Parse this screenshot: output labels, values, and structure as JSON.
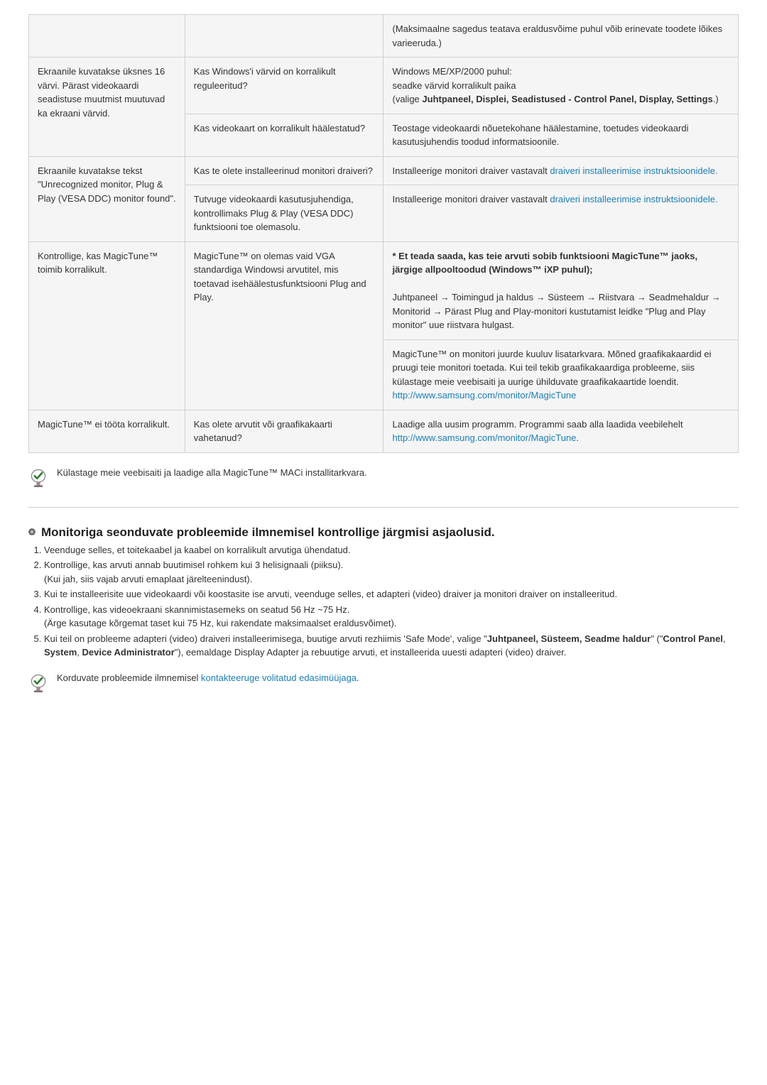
{
  "colors": {
    "cell_bg": "#f5f5f5",
    "border": "#d0d0d0",
    "link": "#1a7fb8",
    "bullet_outer": "#6a6a6a",
    "bullet_inner": "#9a9a9a"
  },
  "table": {
    "rows": [
      {
        "c1": "",
        "c2": "",
        "c3": "(Maksimaalne sagedus teatava eraldusvõime puhul võib erinevate toodete lõikes varieeruda.)"
      },
      {
        "c1": "Ekraanile kuvatakse üksnes 16 värvi. Pärast videokaardi seadistuse muutmist muutuvad ka ekraani värvid.",
        "c1_rowspan": 2,
        "c2": "Kas Windows'i värvid on korralikult reguleeritud?",
        "c3_html": "Windows ME/XP/2000 puhul:<br>seadke värvid korralikult paika<br>(valige <b>Juhtpaneel, Displei, Seadistused - Control Panel, Display, Settings</b>.)"
      },
      {
        "c2": "Kas videokaart on korralikult häälestatud?",
        "c3": "Teostage videokaardi nõuetekohane häälestamine, toetudes videokaardi kasutusjuhendis toodud informatsioonile."
      },
      {
        "c1": "Ekraanile kuvatakse tekst \"Unrecognized monitor, Plug & Play (VESA DDC) monitor found\".",
        "c1_rowspan": 2,
        "c2": "Kas te olete installeerinud monitori draiveri?",
        "c3_html": "Installeerige monitori draiver vastavalt <span class=\"link\">draiveri installeerimise instruktsioonidele.</span>"
      },
      {
        "c2": "Tutvuge videokaardi kasutusjuhendiga, kontrollimaks Plug & Play (VESA DDC) funktsiooni toe olemasolu.",
        "c3_html": "Installeerige monitori draiver vastavalt <span class=\"link\">draiveri installeerimise instruktsioonidele.</span>"
      },
      {
        "c1": "Kontrollige, kas MagicTune™ toimib korralikult.",
        "c1_rowspan": 2,
        "c2": "MagicTune™ on olemas vaid VGA standardiga Windowsi arvutitel, mis toetavad isehäälestusfunktsiooni Plug and Play.",
        "c2_rowspan": 2,
        "c3_html": "<b>* Et teada saada, kas teie arvuti sobib funktsiooni MagicTune™ jaoks, järgige allpooltoodud (Windows™ iXP puhul);</b><br><br>Juhtpaneel → Toimingud ja haldus → Süsteem → Riistvara → Seadmehaldur → Monitorid → Pärast Plug and Play-monitori kustutamist leidke \"Plug and Play monitor\" uue riistvara hulgast."
      },
      {
        "c3_html": "MagicTune™ on monitori juurde kuuluv lisatarkvara. Mõned graafikakaardid ei pruugi teie monitori toetada. Kui teil tekib graafikakaardiga probleeme, siis külastage meie veebisaiti ja uurige ühilduvate graafikakaartide loendit.<br><span class=\"link\">http://www.samsung.com/monitor/MagicTune</span>"
      },
      {
        "c1": "MagicTune™ ei tööta korralikult.",
        "c2": "Kas olete arvutit või graafikakaarti vahetanud?",
        "c3_html": "Laadige alla uusim programm. Programmi saab alla laadida veebilehelt<br><span class=\"link\">http://www.samsung.com/monitor/MagicTune</span>."
      }
    ]
  },
  "note1": "Külastage meie veebisaiti ja laadige alla MagicTune™ MACi installitarkvara.",
  "section": {
    "title": "Monitoriga seonduvate probleemide ilmnemisel kontrollige järgmisi asjaolusid.",
    "items": [
      {
        "html": "Veenduge selles, et toitekaabel ja kaabel on korralikult arvutiga ühendatud."
      },
      {
        "html": "Kontrollige, kas arvuti annab buutimisel rohkem kui 3 helisignaali (piiksu).<br>(Kui jah, siis vajab arvuti emaplaat järelteenindust)."
      },
      {
        "html": "Kui te installeerisite uue videokaardi või koostasite ise arvuti, veenduge selles, et adapteri (video) draiver ja monitori draiver on installeeritud."
      },
      {
        "html": "Kontrollige, kas videoekraani skannimistasemeks on seatud 56 Hz ~75 Hz.<br>(Ärge kasutage kõrgemat taset kui 75 Hz, kui rakendate maksimaalset eraldusvõimet)."
      },
      {
        "html": "Kui teil on probleeme adapteri (video) draiveri installeerimisega, buutige arvuti rezhiimis 'Safe Mode', valige \"<b>Juhtpaneel, Süsteem, Seadme haldur</b>\" (\"<b>Control Panel</b>, <b>System</b>, <b>Device Administrator</b>\"), eemaldage Display Adapter ja rebuutige arvuti, et installeerida uuesti adapteri (video) draiver."
      }
    ]
  },
  "note2_html": "Korduvate probleemide ilmnemisel <span class=\"link\">kontakteeruge volitatud edasimüüjaga</span>."
}
